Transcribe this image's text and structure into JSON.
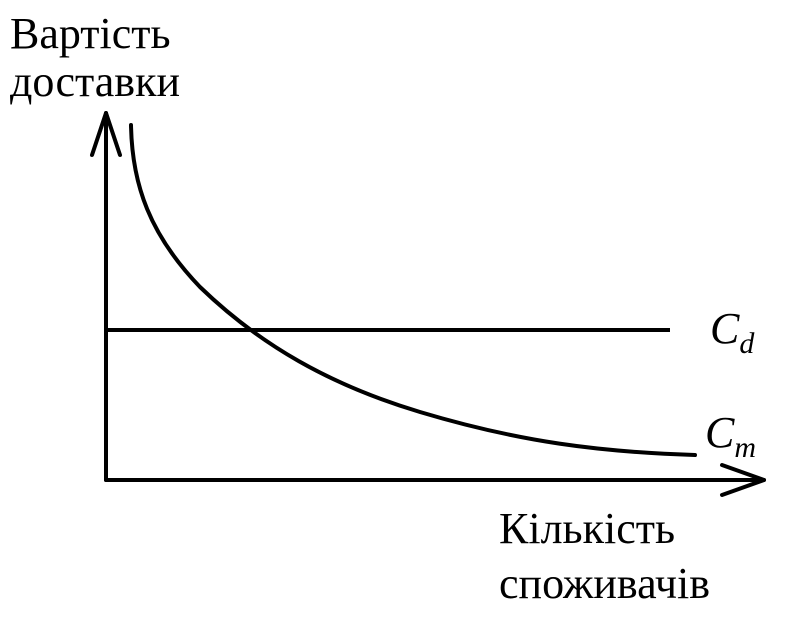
{
  "y_axis_label": [
    "Вартість",
    "доставки"
  ],
  "x_axis_label": [
    "Кількість",
    "споживачів"
  ],
  "curves": [
    {
      "symbol": "C",
      "subscript": "d"
    },
    {
      "symbol": "C",
      "subscript": "m"
    }
  ]
}
